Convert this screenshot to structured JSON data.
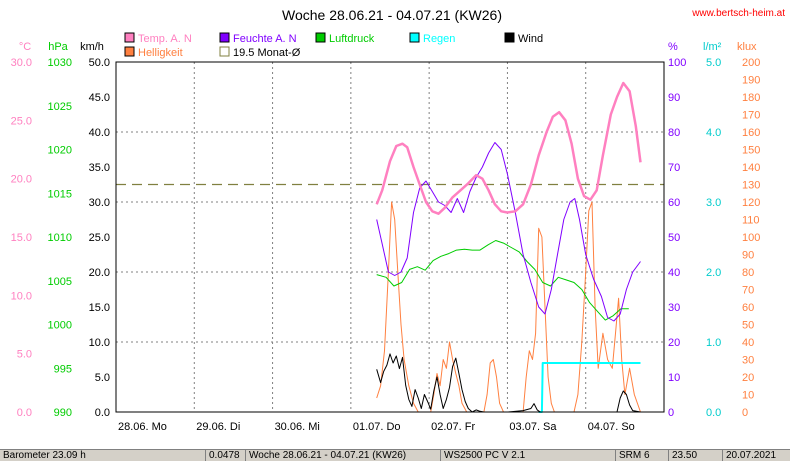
{
  "header": {
    "title": "Woche 28.06.21 - 04.07.21 (KW26)",
    "website": "www.bertsch-heim.at"
  },
  "legend": [
    {
      "label": "Temp. A. N",
      "color": "#ff80c0"
    },
    {
      "label": "Feuchte A. N",
      "color": "#8000ff"
    },
    {
      "label": "Luftdruck",
      "color": "#00cc00"
    },
    {
      "label": "Regen",
      "color": "#00ffff"
    },
    {
      "label": "Wind",
      "color": "#000000"
    },
    {
      "label": "Helligkeit",
      "color": "#ff8040"
    },
    {
      "label": "19.5 Monat-Ø",
      "color": "#808040"
    }
  ],
  "axes": {
    "temp": {
      "unit": "°C",
      "ticks": [
        "30.0",
        "25.0",
        "20.0",
        "15.0",
        "10.0",
        "5.0",
        "0.0"
      ],
      "color": "#ff80c0"
    },
    "pressure": {
      "unit": "hPa",
      "ticks": [
        "1030",
        "1025",
        "1020",
        "1015",
        "1010",
        "1005",
        "1000",
        "995",
        "990"
      ],
      "color": "#00cc00"
    },
    "wind": {
      "unit": "km/h",
      "ticks": [
        "50.0",
        "45.0",
        "40.0",
        "35.0",
        "30.0",
        "25.0",
        "20.0",
        "15.0",
        "10.0",
        "5.0",
        "0.0"
      ],
      "color": "#000000"
    },
    "humidity": {
      "unit": "%",
      "ticks": [
        "100",
        "90",
        "80",
        "70",
        "60",
        "50",
        "40",
        "30",
        "20",
        "10",
        "0"
      ],
      "color": "#8000ff"
    },
    "rain": {
      "unit": "l/m²",
      "ticks": [
        "5.0",
        "4.0",
        "3.0",
        "2.0",
        "1.0",
        "0.0"
      ],
      "color": "#00cccc"
    },
    "light": {
      "unit": "klux",
      "ticks": [
        "200",
        "190",
        "180",
        "170",
        "160",
        "150",
        "140",
        "130",
        "120",
        "110",
        "100",
        "90",
        "80",
        "70",
        "60",
        "50",
        "40",
        "30",
        "20",
        "10",
        "0"
      ],
      "color": "#ff8040"
    }
  },
  "status_bar": [
    "Barometer 23.09 h",
    "0.0478",
    "Woche 28.06.21 - 04.07.21 (KW26)",
    "WS2500 PC V 2.1",
    "SRM 6",
    "23.50",
    "20.07.2021"
  ],
  "chart_data": {
    "type": "line",
    "title": "Woche 28.06.21 - 04.07.21 (KW26)",
    "categories": [
      "28.06. Mo",
      "29.06. Di",
      "30.06. Mi",
      "01.07. Do",
      "02.07. Fr",
      "03.07. Sa",
      "04.07. So"
    ],
    "x_unit": "days since 28.06. 00:00",
    "xlim": [
      0,
      7
    ],
    "grid": true,
    "reference_line": {
      "name": "19.5 Monat-Ø",
      "axis": "temp",
      "value": 19.5
    },
    "series": [
      {
        "name": "Temp. A. N",
        "axis": "temp",
        "ylim": [
          0,
          30
        ],
        "color": "#ff80c0",
        "points": [
          [
            3.33,
            17.8
          ],
          [
            3.4,
            19.0
          ],
          [
            3.5,
            21.5
          ],
          [
            3.58,
            22.8
          ],
          [
            3.66,
            23.0
          ],
          [
            3.72,
            22.7
          ],
          [
            3.8,
            21.0
          ],
          [
            3.88,
            19.5
          ],
          [
            3.96,
            18.0
          ],
          [
            4.04,
            17.2
          ],
          [
            4.12,
            17.0
          ],
          [
            4.2,
            17.5
          ],
          [
            4.3,
            18.4
          ],
          [
            4.4,
            19.0
          ],
          [
            4.5,
            19.6
          ],
          [
            4.6,
            20.3
          ],
          [
            4.68,
            20.0
          ],
          [
            4.76,
            19.0
          ],
          [
            4.84,
            17.8
          ],
          [
            4.92,
            17.2
          ],
          [
            5.0,
            17.1
          ],
          [
            5.1,
            17.2
          ],
          [
            5.2,
            17.8
          ],
          [
            5.3,
            19.5
          ],
          [
            5.4,
            22.0
          ],
          [
            5.5,
            24.0
          ],
          [
            5.58,
            25.3
          ],
          [
            5.66,
            25.7
          ],
          [
            5.74,
            25.0
          ],
          [
            5.82,
            23.0
          ],
          [
            5.9,
            20.0
          ],
          [
            5.98,
            18.5
          ],
          [
            6.06,
            18.2
          ],
          [
            6.14,
            19.0
          ],
          [
            6.22,
            22.0
          ],
          [
            6.32,
            25.5
          ],
          [
            6.4,
            27.0
          ],
          [
            6.48,
            28.2
          ],
          [
            6.56,
            27.5
          ],
          [
            6.64,
            24.5
          ],
          [
            6.7,
            21.4
          ]
        ]
      },
      {
        "name": "Feuchte A. N",
        "axis": "humidity",
        "ylim": [
          0,
          100
        ],
        "color": "#8000ff",
        "points": [
          [
            3.33,
            55
          ],
          [
            3.4,
            48
          ],
          [
            3.48,
            40
          ],
          [
            3.56,
            39
          ],
          [
            3.64,
            40
          ],
          [
            3.72,
            44
          ],
          [
            3.8,
            57
          ],
          [
            3.88,
            64
          ],
          [
            3.96,
            66
          ],
          [
            4.04,
            63
          ],
          [
            4.12,
            60
          ],
          [
            4.2,
            59
          ],
          [
            4.28,
            57
          ],
          [
            4.36,
            61
          ],
          [
            4.44,
            57
          ],
          [
            4.52,
            63
          ],
          [
            4.6,
            67
          ],
          [
            4.68,
            70
          ],
          [
            4.76,
            74
          ],
          [
            4.84,
            77
          ],
          [
            4.92,
            75
          ],
          [
            5.0,
            68
          ],
          [
            5.1,
            57
          ],
          [
            5.2,
            45
          ],
          [
            5.3,
            37
          ],
          [
            5.4,
            30
          ],
          [
            5.48,
            28
          ],
          [
            5.56,
            35
          ],
          [
            5.64,
            45
          ],
          [
            5.72,
            55
          ],
          [
            5.8,
            60
          ],
          [
            5.86,
            61
          ],
          [
            5.92,
            55
          ],
          [
            6.0,
            45
          ],
          [
            6.1,
            38
          ],
          [
            6.2,
            33
          ],
          [
            6.28,
            27
          ],
          [
            6.36,
            26
          ],
          [
            6.44,
            28
          ],
          [
            6.52,
            35
          ],
          [
            6.6,
            40
          ],
          [
            6.7,
            43
          ]
        ]
      },
      {
        "name": "Luftdruck",
        "axis": "pressure",
        "ylim": [
          990,
          1030
        ],
        "color": "#00cc00",
        "points": [
          [
            3.33,
            1005.7
          ],
          [
            3.45,
            1005.4
          ],
          [
            3.55,
            1004.4
          ],
          [
            3.65,
            1004.8
          ],
          [
            3.75,
            1006.3
          ],
          [
            3.85,
            1006.6
          ],
          [
            3.95,
            1006.2
          ],
          [
            4.05,
            1007.3
          ],
          [
            4.15,
            1007.8
          ],
          [
            4.25,
            1008.1
          ],
          [
            4.35,
            1008.5
          ],
          [
            4.45,
            1008.6
          ],
          [
            4.55,
            1008.5
          ],
          [
            4.65,
            1008.5
          ],
          [
            4.75,
            1009.1
          ],
          [
            4.85,
            1009.6
          ],
          [
            4.95,
            1009.3
          ],
          [
            5.05,
            1008.8
          ],
          [
            5.15,
            1008.3
          ],
          [
            5.25,
            1007.2
          ],
          [
            5.35,
            1006.3
          ],
          [
            5.45,
            1004.8
          ],
          [
            5.55,
            1004.4
          ],
          [
            5.65,
            1005.4
          ],
          [
            5.75,
            1005.1
          ],
          [
            5.85,
            1004.8
          ],
          [
            5.95,
            1004.0
          ],
          [
            6.05,
            1002.5
          ],
          [
            6.15,
            1001.5
          ],
          [
            6.25,
            1000.5
          ],
          [
            6.35,
            1001.0
          ],
          [
            6.45,
            1001.8
          ],
          [
            6.55,
            1001.8
          ]
        ]
      },
      {
        "name": "Regen",
        "axis": "rain",
        "ylim": [
          0,
          5
        ],
        "color": "#00ffff",
        "points": [
          [
            5.4,
            0
          ],
          [
            5.44,
            0
          ],
          [
            5.45,
            0.7
          ],
          [
            6.05,
            0.7
          ],
          [
            6.7,
            0.7
          ]
        ]
      },
      {
        "name": "Wind",
        "axis": "wind",
        "ylim": [
          0,
          50
        ],
        "color": "#000000",
        "points": [
          [
            3.33,
            6.1
          ],
          [
            3.38,
            4.2
          ],
          [
            3.42,
            5.8
          ],
          [
            3.46,
            6.7
          ],
          [
            3.5,
            8.3
          ],
          [
            3.54,
            7.0
          ],
          [
            3.58,
            8.0
          ],
          [
            3.62,
            6.2
          ],
          [
            3.66,
            7.8
          ],
          [
            3.7,
            3.8
          ],
          [
            3.74,
            1.8
          ],
          [
            3.78,
            0.8
          ],
          [
            3.82,
            3.2
          ],
          [
            3.86,
            2.0
          ],
          [
            3.9,
            0.5
          ],
          [
            3.94,
            2.5
          ],
          [
            3.98,
            1.5
          ],
          [
            4.02,
            0.4
          ],
          [
            4.06,
            3.0
          ],
          [
            4.1,
            5.0
          ],
          [
            4.14,
            2.5
          ],
          [
            4.18,
            0.5
          ],
          [
            4.22,
            1.8
          ],
          [
            4.26,
            3.5
          ],
          [
            4.3,
            6.5
          ],
          [
            4.34,
            7.7
          ],
          [
            4.38,
            5.5
          ],
          [
            4.42,
            3.2
          ],
          [
            4.46,
            1.5
          ],
          [
            4.5,
            0.5
          ],
          [
            4.55,
            0.0
          ],
          [
            4.6,
            0.3
          ],
          [
            4.65,
            0.1
          ],
          [
            4.7,
            0.0
          ],
          [
            5.0,
            0.0
          ],
          [
            5.2,
            0.2
          ],
          [
            5.3,
            0.5
          ],
          [
            5.34,
            1.2
          ],
          [
            5.38,
            0.3
          ],
          [
            5.42,
            0.0
          ],
          [
            6.4,
            0.0
          ],
          [
            6.44,
            2.0
          ],
          [
            6.48,
            3.0
          ],
          [
            6.52,
            2.5
          ],
          [
            6.56,
            1.0
          ],
          [
            6.6,
            0.2
          ],
          [
            6.7,
            0.0
          ]
        ]
      },
      {
        "name": "Helligkeit",
        "axis": "light",
        "ylim": [
          0,
          200
        ],
        "color": "#ff8040",
        "points": [
          [
            3.33,
            8
          ],
          [
            3.38,
            15
          ],
          [
            3.43,
            35
          ],
          [
            3.48,
            80
          ],
          [
            3.52,
            120
          ],
          [
            3.56,
            110
          ],
          [
            3.6,
            80
          ],
          [
            3.64,
            50
          ],
          [
            3.68,
            30
          ],
          [
            3.74,
            15
          ],
          [
            3.8,
            5
          ],
          [
            3.86,
            0
          ],
          [
            4.02,
            0
          ],
          [
            4.06,
            10
          ],
          [
            4.1,
            22
          ],
          [
            4.14,
            15
          ],
          [
            4.18,
            30
          ],
          [
            4.22,
            25
          ],
          [
            4.26,
            40
          ],
          [
            4.3,
            30
          ],
          [
            4.34,
            22
          ],
          [
            4.38,
            15
          ],
          [
            4.42,
            5
          ],
          [
            4.48,
            0
          ],
          [
            4.7,
            0
          ],
          [
            4.74,
            10
          ],
          [
            4.78,
            28
          ],
          [
            4.82,
            30
          ],
          [
            4.86,
            20
          ],
          [
            4.9,
            5
          ],
          [
            4.95,
            0
          ],
          [
            5.2,
            0
          ],
          [
            5.24,
            20
          ],
          [
            5.28,
            35
          ],
          [
            5.32,
            30
          ],
          [
            5.36,
            45
          ],
          [
            5.4,
            105
          ],
          [
            5.44,
            100
          ],
          [
            5.48,
            60
          ],
          [
            5.52,
            20
          ],
          [
            5.56,
            5
          ],
          [
            5.6,
            0
          ],
          [
            5.85,
            0
          ],
          [
            5.9,
            10
          ],
          [
            5.95,
            40
          ],
          [
            6.0,
            80
          ],
          [
            6.04,
            115
          ],
          [
            6.08,
            120
          ],
          [
            6.12,
            60
          ],
          [
            6.16,
            25
          ],
          [
            6.22,
            45
          ],
          [
            6.28,
            30
          ],
          [
            6.34,
            25
          ],
          [
            6.38,
            45
          ],
          [
            6.42,
            65
          ],
          [
            6.46,
            30
          ],
          [
            6.5,
            10
          ],
          [
            6.56,
            25
          ],
          [
            6.62,
            10
          ],
          [
            6.7,
            0
          ]
        ]
      }
    ]
  }
}
